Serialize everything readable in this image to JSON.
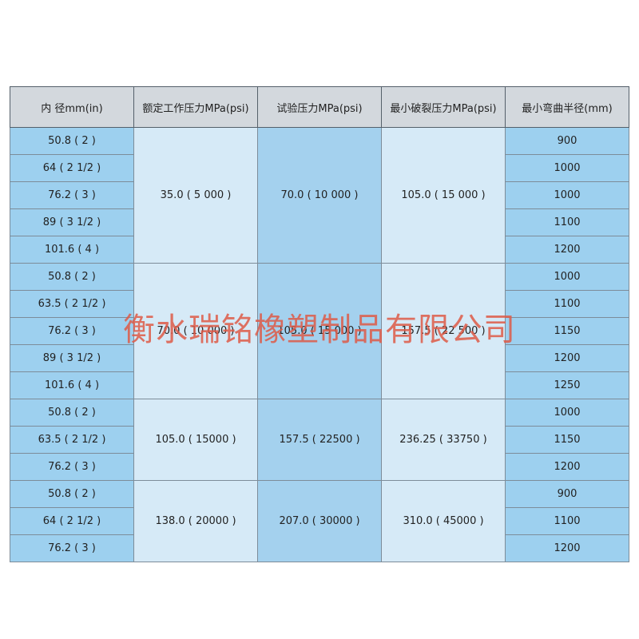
{
  "table": {
    "header": [
      "内 径mm(in)",
      "额定工作压力MPa(psi)",
      "试验压力MPa(psi)",
      "最小破裂压力MPa(psi)",
      "最小弯曲半径(mm)"
    ],
    "groups": [
      {
        "working": "35.0 ( 5 000 )",
        "test": "70.0 ( 10 000 )",
        "burst": "105.0 ( 15 000 )",
        "rows": [
          [
            "50.8 ( 2 )",
            "900"
          ],
          [
            "64 ( 2 1/2 )",
            "1000"
          ],
          [
            "76.2 ( 3 )",
            "1000"
          ],
          [
            "89 ( 3 1/2 )",
            "1100"
          ],
          [
            "101.6 ( 4 )",
            "1200"
          ]
        ]
      },
      {
        "working": "70.0 ( 10 000 )",
        "test": "105.0 ( 15 000 )",
        "burst": "157.5 ( 22 500 )",
        "rows": [
          [
            "50.8 ( 2 )",
            "1000"
          ],
          [
            "63.5 ( 2 1/2 )",
            "1100"
          ],
          [
            "76.2 ( 3 )",
            "1150"
          ],
          [
            "89 ( 3 1/2 )",
            "1200"
          ],
          [
            "101.6 ( 4 )",
            "1250"
          ]
        ]
      },
      {
        "working": "105.0 ( 15000 )",
        "test": "157.5 ( 22500 )",
        "burst": "236.25 ( 33750 )",
        "rows": [
          [
            "50.8 ( 2 )",
            "1000"
          ],
          [
            "63.5 ( 2 1/2 )",
            "1150"
          ],
          [
            "76.2 ( 3 )",
            "1200"
          ]
        ]
      },
      {
        "working": "138.0 ( 20000 )",
        "test": "207.0 ( 30000 )",
        "burst": "310.0 ( 45000 )",
        "rows": [
          [
            "50.8 ( 2 )",
            "900"
          ],
          [
            "64 ( 2 1/2 )",
            "1100"
          ],
          [
            "76.2 ( 3 )",
            "1200"
          ]
        ]
      }
    ]
  },
  "watermark": "衡水瑞铭橡塑制品有限公司"
}
